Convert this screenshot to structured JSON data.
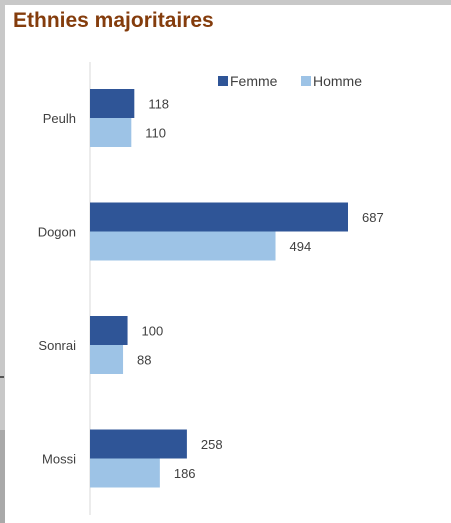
{
  "title": "Ethnies majoritaires",
  "colors": {
    "femme": "#2f5597",
    "homme": "#9dc3e6",
    "title": "#843c0c",
    "axis": "#d9d9d9",
    "text": "#404040"
  },
  "chart_data": {
    "type": "bar",
    "orientation": "horizontal",
    "title": "Ethnies majoritaires",
    "categories": [
      "Peulh",
      "Dogon",
      "Sonrai",
      "Mossi"
    ],
    "series": [
      {
        "name": "Femme",
        "values": [
          118,
          687,
          100,
          258
        ]
      },
      {
        "name": "Homme",
        "values": [
          110,
          494,
          88,
          186
        ]
      }
    ],
    "xlim": [
      0,
      700
    ],
    "data_labels": true,
    "grid": false,
    "legend": "top-right"
  }
}
